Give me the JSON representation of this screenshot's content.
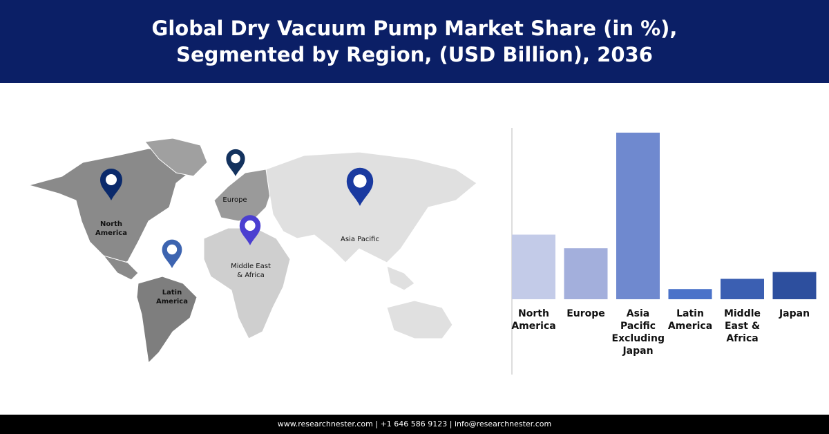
{
  "chart_data": {
    "type": "bar",
    "title": [
      "Global Dry Vacuum Pump Market Share (in %),",
      "Segmented by Region, (USD Billion), 2036"
    ],
    "categories": [
      "North America",
      "Europe",
      "Asia Pacific Excluding Japan",
      "Latin America",
      "Middle East & Africa",
      "Japan"
    ],
    "values": [
      19,
      15,
      49,
      3,
      6,
      8
    ],
    "colors": [
      "#c3cbe8",
      "#a3afdc",
      "#6f89cf",
      "#4a72c9",
      "#3b5fb2",
      "#2d4f9e"
    ],
    "ylim": [
      0,
      50
    ]
  },
  "map": {
    "pins": [
      {
        "label": "North America",
        "color": "#0b2a6b"
      },
      {
        "label": "Europe",
        "color": "#13325e"
      },
      {
        "label": "Asia Pacific",
        "color": "#1a3aa0"
      },
      {
        "label": "Middle East & Africa",
        "color": "#4b3fd0"
      },
      {
        "label": "Latin America",
        "color": "#3d64b0"
      }
    ]
  },
  "footer": "www.researchnester.com  | +1 646 586 9123 | info@researchnester.com"
}
